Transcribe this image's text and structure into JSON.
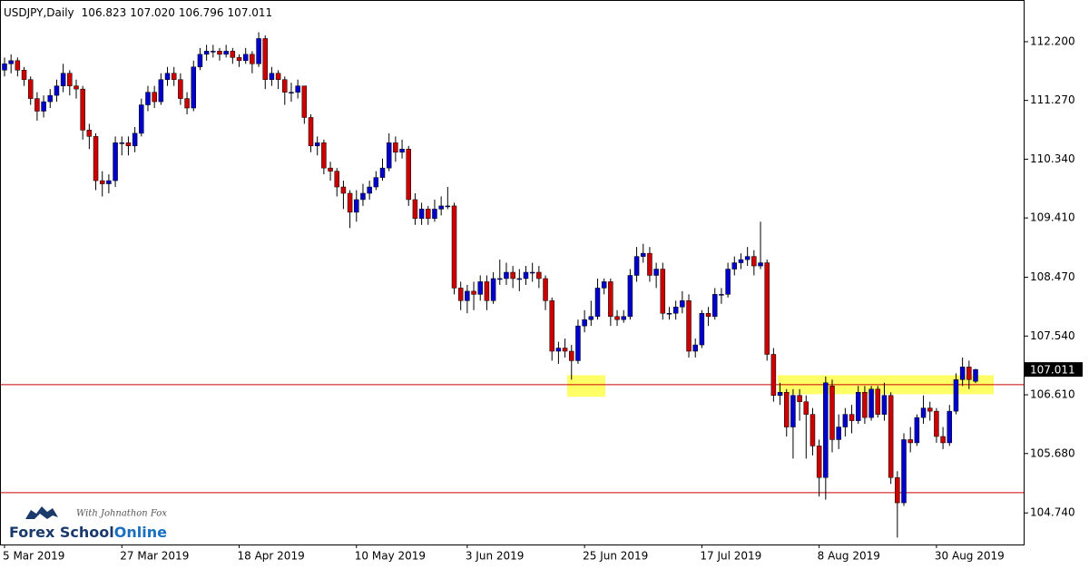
{
  "chart_data": {
    "type": "candlestick",
    "info": {
      "symbol": "USDJPY,Daily",
      "values": [
        "106.823",
        "107.020",
        "106.796",
        "107.011"
      ]
    },
    "watermark": {
      "tagline": "With Johnathon Fox",
      "brand": "Forex School",
      "brand_suffix": "Online"
    },
    "up_color": "#0000cc",
    "down_color": "#cc0000",
    "wick_color": "#000000",
    "ylim": [
      104.24,
      112.86
    ],
    "yticks": [
      {
        "value": 112.2,
        "label": "112.200"
      },
      {
        "value": 111.27,
        "label": "111.270"
      },
      {
        "value": 110.34,
        "label": "110.340"
      },
      {
        "value": 109.41,
        "label": "109.410"
      },
      {
        "value": 108.47,
        "label": "108.470"
      },
      {
        "value": 107.54,
        "label": "107.540"
      },
      {
        "value": 106.61,
        "label": "106.610"
      },
      {
        "value": 105.68,
        "label": "105.680"
      },
      {
        "value": 104.74,
        "label": "104.740"
      }
    ],
    "current_price": {
      "value": 107.011,
      "label": "107.011"
    },
    "levels": [
      106.77,
      105.06
    ],
    "level_color": "#cc0000",
    "zones": [
      {
        "low": 106.58,
        "high": 106.92
      },
      {
        "low": 106.62,
        "high": 106.92
      }
    ],
    "zone_color": "#ffff66",
    "categories": [
      "5 Mar 2019",
      null,
      null,
      null,
      null,
      null,
      null,
      null,
      null,
      null,
      null,
      null,
      null,
      null,
      null,
      null,
      null,
      null,
      "27 Mar 2019",
      null,
      null,
      null,
      null,
      null,
      null,
      null,
      null,
      null,
      null,
      null,
      null,
      null,
      null,
      null,
      null,
      null,
      "18 Apr 2019",
      null,
      null,
      null,
      null,
      null,
      null,
      null,
      null,
      null,
      null,
      null,
      null,
      null,
      null,
      null,
      null,
      null,
      "10 May 2019",
      null,
      null,
      null,
      null,
      null,
      null,
      null,
      null,
      null,
      null,
      null,
      null,
      null,
      null,
      null,
      null,
      "3 Jun 2019",
      null,
      null,
      null,
      null,
      null,
      null,
      null,
      null,
      null,
      null,
      null,
      null,
      null,
      null,
      null,
      null,
      null,
      "25 Jun 2019",
      null,
      null,
      null,
      null,
      null,
      null,
      null,
      null,
      null,
      null,
      null,
      null,
      null,
      null,
      null,
      null,
      null,
      "17 Jul 2019",
      null,
      null,
      null,
      null,
      null,
      null,
      null,
      null,
      null,
      null,
      null,
      null,
      null,
      null,
      null,
      null,
      null,
      "8 Aug 2019",
      null,
      null,
      null,
      null,
      null,
      null,
      null,
      null,
      null,
      null,
      null,
      null,
      null,
      null,
      null,
      null,
      null,
      "30 Aug 2019",
      null,
      null,
      null,
      null,
      null,
      null
    ],
    "ohlc": [
      [
        111.75,
        111.95,
        111.65,
        111.85
      ],
      [
        111.85,
        112.0,
        111.7,
        111.9
      ],
      [
        111.9,
        111.95,
        111.65,
        111.75
      ],
      [
        111.75,
        111.8,
        111.5,
        111.6
      ],
      [
        111.6,
        111.65,
        111.2,
        111.3
      ],
      [
        111.3,
        111.4,
        110.95,
        111.1
      ],
      [
        111.1,
        111.35,
        111.0,
        111.25
      ],
      [
        111.25,
        111.45,
        111.15,
        111.35
      ],
      [
        111.35,
        111.6,
        111.25,
        111.5
      ],
      [
        111.5,
        111.85,
        111.4,
        111.7
      ],
      [
        111.7,
        111.75,
        111.35,
        111.5
      ],
      [
        111.5,
        111.6,
        111.3,
        111.45
      ],
      [
        111.45,
        111.5,
        110.65,
        110.8
      ],
      [
        110.8,
        110.9,
        110.5,
        110.7
      ],
      [
        110.7,
        110.75,
        109.85,
        110.0
      ],
      [
        110.0,
        110.15,
        109.75,
        109.95
      ],
      [
        109.95,
        110.1,
        109.8,
        110.0
      ],
      [
        110.0,
        110.7,
        109.9,
        110.6
      ],
      [
        110.6,
        110.7,
        110.4,
        110.6
      ],
      [
        110.6,
        110.7,
        110.4,
        110.55
      ],
      [
        110.55,
        110.85,
        110.45,
        110.75
      ],
      [
        110.75,
        111.3,
        110.7,
        111.2
      ],
      [
        111.2,
        111.5,
        111.1,
        111.4
      ],
      [
        111.4,
        111.5,
        111.15,
        111.25
      ],
      [
        111.25,
        111.7,
        111.2,
        111.6
      ],
      [
        111.6,
        111.8,
        111.5,
        111.7
      ],
      [
        111.7,
        111.8,
        111.5,
        111.6
      ],
      [
        111.6,
        111.7,
        111.2,
        111.3
      ],
      [
        111.3,
        111.4,
        111.05,
        111.15
      ],
      [
        111.15,
        111.9,
        111.1,
        111.8
      ],
      [
        111.8,
        112.1,
        111.75,
        112.0
      ],
      [
        112.0,
        112.15,
        111.9,
        112.05
      ],
      [
        112.05,
        112.15,
        111.95,
        112.05
      ],
      [
        112.05,
        112.1,
        111.9,
        112.0
      ],
      [
        112.0,
        112.15,
        111.95,
        112.05
      ],
      [
        112.05,
        112.1,
        111.85,
        111.95
      ],
      [
        111.95,
        112.0,
        111.8,
        111.9
      ],
      [
        111.9,
        112.1,
        111.85,
        112.0
      ],
      [
        112.0,
        112.05,
        111.7,
        111.85
      ],
      [
        111.85,
        112.35,
        111.8,
        112.25
      ],
      [
        112.25,
        112.3,
        111.45,
        111.6
      ],
      [
        111.6,
        111.8,
        111.5,
        111.7
      ],
      [
        111.7,
        111.75,
        111.45,
        111.6
      ],
      [
        111.6,
        111.65,
        111.2,
        111.4
      ],
      [
        111.4,
        111.55,
        111.25,
        111.4
      ],
      [
        111.4,
        111.6,
        111.3,
        111.5
      ],
      [
        111.5,
        111.5,
        110.9,
        111.0
      ],
      [
        111.0,
        111.05,
        110.45,
        110.55
      ],
      [
        110.55,
        110.7,
        110.4,
        110.6
      ],
      [
        110.6,
        110.65,
        110.1,
        110.2
      ],
      [
        110.2,
        110.3,
        110.0,
        110.15
      ],
      [
        110.15,
        110.2,
        109.75,
        109.9
      ],
      [
        109.9,
        110.0,
        109.55,
        109.8
      ],
      [
        109.8,
        109.85,
        109.25,
        109.5
      ],
      [
        109.5,
        109.85,
        109.35,
        109.7
      ],
      [
        109.7,
        109.95,
        109.6,
        109.8
      ],
      [
        109.8,
        110.0,
        109.7,
        109.9
      ],
      [
        109.9,
        110.15,
        109.85,
        110.05
      ],
      [
        110.05,
        110.35,
        110.0,
        110.2
      ],
      [
        110.2,
        110.75,
        110.15,
        110.6
      ],
      [
        110.6,
        110.7,
        110.3,
        110.45
      ],
      [
        110.45,
        110.65,
        110.35,
        110.5
      ],
      [
        110.5,
        110.55,
        109.6,
        109.7
      ],
      [
        109.7,
        109.8,
        109.3,
        109.4
      ],
      [
        109.4,
        109.65,
        109.3,
        109.55
      ],
      [
        109.55,
        109.6,
        109.3,
        109.4
      ],
      [
        109.4,
        109.7,
        109.35,
        109.55
      ],
      [
        109.55,
        109.75,
        109.45,
        109.6
      ],
      [
        109.6,
        109.9,
        109.55,
        109.6
      ],
      [
        109.6,
        109.65,
        108.2,
        108.3
      ],
      [
        108.3,
        108.4,
        107.95,
        108.1
      ],
      [
        108.1,
        108.35,
        107.9,
        108.25
      ],
      [
        108.25,
        108.4,
        107.95,
        108.2
      ],
      [
        108.2,
        108.5,
        108.1,
        108.4
      ],
      [
        108.4,
        108.5,
        107.95,
        108.1
      ],
      [
        108.1,
        108.55,
        108.05,
        108.45
      ],
      [
        108.45,
        108.75,
        108.35,
        108.45
      ],
      [
        108.45,
        108.7,
        108.35,
        108.55
      ],
      [
        108.55,
        108.65,
        108.3,
        108.45
      ],
      [
        108.45,
        108.6,
        108.25,
        108.45
      ],
      [
        108.45,
        108.65,
        108.35,
        108.55
      ],
      [
        108.55,
        108.7,
        108.4,
        108.55
      ],
      [
        108.55,
        108.65,
        108.3,
        108.45
      ],
      [
        108.45,
        108.5,
        107.95,
        108.1
      ],
      [
        108.1,
        108.15,
        107.15,
        107.3
      ],
      [
        107.3,
        107.45,
        107.1,
        107.35
      ],
      [
        107.35,
        107.5,
        107.2,
        107.3
      ],
      [
        107.3,
        107.4,
        106.85,
        107.15
      ],
      [
        107.15,
        107.8,
        107.1,
        107.7
      ],
      [
        107.7,
        107.95,
        107.6,
        107.8
      ],
      [
        107.8,
        108.1,
        107.7,
        107.85
      ],
      [
        107.85,
        108.45,
        107.8,
        108.3
      ],
      [
        108.3,
        108.45,
        108.2,
        108.4
      ],
      [
        108.4,
        108.45,
        107.7,
        107.85
      ],
      [
        107.85,
        107.95,
        107.7,
        107.8
      ],
      [
        107.8,
        107.95,
        107.75,
        107.85
      ],
      [
        107.85,
        108.6,
        107.8,
        108.5
      ],
      [
        108.5,
        108.95,
        108.4,
        108.8
      ],
      [
        108.8,
        109.0,
        108.7,
        108.85
      ],
      [
        108.85,
        108.95,
        108.4,
        108.5
      ],
      [
        108.5,
        108.7,
        108.3,
        108.6
      ],
      [
        108.6,
        108.7,
        107.8,
        107.9
      ],
      [
        107.9,
        108.0,
        107.8,
        107.9
      ],
      [
        107.9,
        108.1,
        107.8,
        108.0
      ],
      [
        108.0,
        108.25,
        107.9,
        108.1
      ],
      [
        108.1,
        108.2,
        107.2,
        107.3
      ],
      [
        107.3,
        107.5,
        107.2,
        107.4
      ],
      [
        107.4,
        107.95,
        107.35,
        107.9
      ],
      [
        107.9,
        108.0,
        107.7,
        107.85
      ],
      [
        107.85,
        108.3,
        107.8,
        108.2
      ],
      [
        108.2,
        108.3,
        108.05,
        108.2
      ],
      [
        108.2,
        108.7,
        108.15,
        108.6
      ],
      [
        108.6,
        108.8,
        108.5,
        108.7
      ],
      [
        108.7,
        108.85,
        108.6,
        108.75
      ],
      [
        108.75,
        108.95,
        108.65,
        108.8
      ],
      [
        108.8,
        108.9,
        108.5,
        108.65
      ],
      [
        108.65,
        109.35,
        108.6,
        108.7
      ],
      [
        108.7,
        108.75,
        107.15,
        107.25
      ],
      [
        107.25,
        107.35,
        106.5,
        106.6
      ],
      [
        106.6,
        106.8,
        106.45,
        106.65
      ],
      [
        106.65,
        106.7,
        105.95,
        106.1
      ],
      [
        106.1,
        106.7,
        105.6,
        106.6
      ],
      [
        106.6,
        106.7,
        106.2,
        106.5
      ],
      [
        106.5,
        106.6,
        105.6,
        106.3
      ],
      [
        106.3,
        106.4,
        105.65,
        105.8
      ],
      [
        105.8,
        105.9,
        105.0,
        105.3
      ],
      [
        105.3,
        106.9,
        104.95,
        106.8
      ],
      [
        106.75,
        106.85,
        105.7,
        105.9
      ],
      [
        105.9,
        106.3,
        105.75,
        106.1
      ],
      [
        106.1,
        106.4,
        105.95,
        106.3
      ],
      [
        106.3,
        106.45,
        106.0,
        106.2
      ],
      [
        106.2,
        106.75,
        106.15,
        106.65
      ],
      [
        106.65,
        106.75,
        106.15,
        106.25
      ],
      [
        106.25,
        106.75,
        106.2,
        106.7
      ],
      [
        106.7,
        106.75,
        106.25,
        106.3
      ],
      [
        106.3,
        106.8,
        106.2,
        106.6
      ],
      [
        106.6,
        106.65,
        105.2,
        105.3
      ],
      [
        105.3,
        105.4,
        104.35,
        104.9
      ],
      [
        104.9,
        106.0,
        104.85,
        105.9
      ],
      [
        105.9,
        106.1,
        105.7,
        105.85
      ],
      [
        105.85,
        106.3,
        105.8,
        106.25
      ],
      [
        106.25,
        106.6,
        106.15,
        106.4
      ],
      [
        106.4,
        106.5,
        106.2,
        106.35
      ],
      [
        106.35,
        106.4,
        105.85,
        105.95
      ],
      [
        105.95,
        106.1,
        105.75,
        105.85
      ],
      [
        105.85,
        106.45,
        105.8,
        106.35
      ],
      [
        106.35,
        106.95,
        106.3,
        106.85
      ],
      [
        106.85,
        107.2,
        106.75,
        107.05
      ],
      [
        107.05,
        107.15,
        106.7,
        106.85
      ],
      [
        106.823,
        107.02,
        106.796,
        107.011
      ]
    ]
  }
}
